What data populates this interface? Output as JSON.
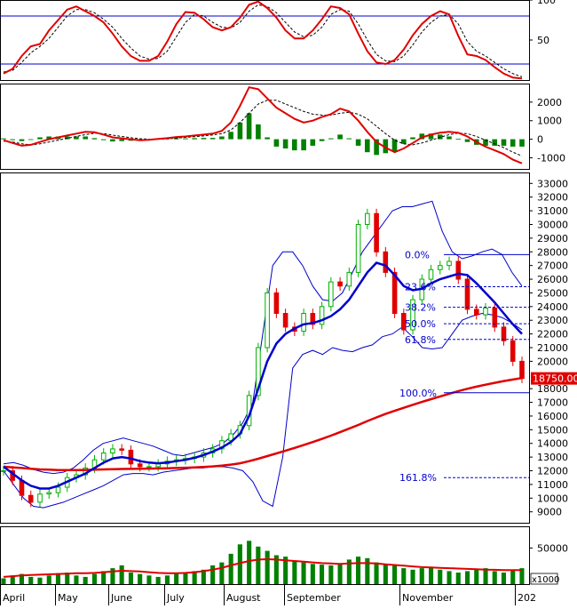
{
  "colors": {
    "background": "#ffffff",
    "frame": "#000000",
    "price_up": "#00b000",
    "price_down": "#e00000",
    "ma_slow": "#e00000",
    "ma_fast": "#0000cc",
    "bollinger": "#0000cc",
    "fib": "#0000cc",
    "stoch_k": "#e00000",
    "stoch_d": "#000000",
    "macd": "#e00000",
    "macd_signal": "#000000",
    "macd_hist": "#008000",
    "volume": "#008000",
    "volume_ma": "#e00000",
    "last_price_bg": "#e00000"
  },
  "chart_data": [
    {
      "type": "line",
      "panel": "stochastic",
      "y_ticks": [
        "100",
        "50"
      ],
      "ylim": [
        0,
        100
      ],
      "levels": [
        80,
        20
      ],
      "series": [
        {
          "role": "k",
          "values": [
            8,
            14,
            30,
            42,
            45,
            62,
            75,
            88,
            92,
            86,
            80,
            72,
            58,
            42,
            30,
            24,
            24,
            30,
            48,
            70,
            85,
            84,
            76,
            66,
            62,
            66,
            78,
            94,
            98,
            90,
            78,
            62,
            52,
            52,
            62,
            76,
            92,
            90,
            82,
            58,
            36,
            22,
            20,
            25,
            38,
            56,
            70,
            80,
            86,
            82,
            55,
            32,
            30,
            25,
            16,
            8,
            3,
            2
          ]
        },
        {
          "role": "d",
          "values": [
            10,
            12,
            22,
            34,
            42,
            52,
            66,
            80,
            88,
            88,
            84,
            76,
            66,
            52,
            40,
            30,
            26,
            27,
            36,
            54,
            72,
            82,
            80,
            72,
            66,
            65,
            72,
            86,
            94,
            92,
            84,
            72,
            60,
            54,
            56,
            66,
            82,
            88,
            86,
            70,
            50,
            32,
            24,
            23,
            30,
            44,
            60,
            72,
            80,
            82,
            70,
            48,
            36,
            30,
            22,
            14,
            8,
            4
          ]
        }
      ]
    },
    {
      "type": "line",
      "panel": "macd",
      "y_ticks": [
        "2000",
        "1000",
        "0",
        "-1000"
      ],
      "ylim": [
        -1600,
        3000
      ],
      "series": [
        {
          "role": "macd",
          "values": [
            -50,
            -200,
            -350,
            -300,
            -150,
            0,
            100,
            200,
            300,
            400,
            380,
            250,
            100,
            50,
            0,
            -50,
            -30,
            20,
            60,
            120,
            150,
            200,
            250,
            300,
            450,
            900,
            1800,
            2800,
            2700,
            2200,
            1700,
            1400,
            1100,
            900,
            1000,
            1200,
            1350,
            1650,
            1500,
            1000,
            400,
            -150,
            -450,
            -700,
            -500,
            -200,
            100,
            250,
            350,
            400,
            350,
            150,
            -150,
            -400,
            -600,
            -800,
            -1100,
            -1300
          ]
        },
        {
          "role": "signal",
          "values": [
            -100,
            -150,
            -250,
            -300,
            -250,
            -150,
            -50,
            50,
            150,
            250,
            320,
            300,
            220,
            150,
            80,
            30,
            0,
            0,
            20,
            60,
            100,
            140,
            180,
            230,
            300,
            500,
            900,
            1400,
            1900,
            2100,
            2100,
            1900,
            1700,
            1500,
            1350,
            1300,
            1300,
            1400,
            1450,
            1350,
            1100,
            700,
            300,
            -50,
            -250,
            -300,
            -200,
            -50,
            100,
            250,
            330,
            300,
            150,
            -50,
            -250,
            -450,
            -700,
            -900
          ]
        },
        {
          "role": "histogram",
          "values": [
            50,
            -50,
            -100,
            0,
            100,
            150,
            150,
            150,
            150,
            150,
            60,
            -50,
            -120,
            -100,
            -80,
            -80,
            -30,
            20,
            40,
            60,
            50,
            60,
            70,
            70,
            150,
            400,
            900,
            1400,
            800,
            100,
            -400,
            -500,
            -600,
            -600,
            -350,
            -100,
            50,
            250,
            50,
            -350,
            -700,
            -850,
            -750,
            -650,
            -250,
            100,
            300,
            300,
            250,
            150,
            20,
            -150,
            -300,
            -350,
            -350,
            -350,
            -400,
            -400
          ]
        }
      ]
    },
    {
      "type": "line",
      "panel": "price",
      "x_ticks": [
        "April",
        "May",
        "June",
        "July",
        "August",
        "September",
        "November",
        "202"
      ],
      "y_ticks": [
        "33000",
        "32000",
        "31000",
        "30000",
        "29000",
        "28000",
        "27000",
        "26000",
        "25000",
        "24000",
        "23000",
        "22000",
        "21000",
        "20000",
        "18000",
        "17000",
        "16000",
        "15000",
        "14000",
        "13000",
        "12000",
        "11000",
        "10000",
        "9000"
      ],
      "ylim": [
        8200,
        33800
      ],
      "last_price": "18750.00",
      "fibonacci": [
        {
          "label": "0.0%",
          "value": 27800
        },
        {
          "label": "23.6%",
          "value": 25450
        },
        {
          "label": "38.2%",
          "value": 23950
        },
        {
          "label": "50.0%",
          "value": 22750
        },
        {
          "label": "61.8%",
          "value": 21600
        },
        {
          "label": "100.0%",
          "value": 17700
        },
        {
          "label": "161.8%",
          "value": 11500
        }
      ],
      "close": [
        12000,
        11300,
        10200,
        9700,
        10300,
        10400,
        10800,
        11500,
        11700,
        12200,
        12800,
        13300,
        13600,
        13500,
        12500,
        12300,
        12300,
        12500,
        12700,
        12800,
        12900,
        13000,
        13300,
        13600,
        14200,
        14700,
        15300,
        17500,
        21000,
        25000,
        23500,
        22500,
        22200,
        23500,
        22700,
        24000,
        25800,
        25500,
        26500,
        30000,
        30800,
        28000,
        26500,
        23500,
        22300,
        24500,
        26000,
        26700,
        27000,
        27300,
        26000,
        23800,
        23400,
        23900,
        22500,
        21500,
        20000,
        18750
      ],
      "series": [
        {
          "role": "ma_slow",
          "values": [
            12300,
            12250,
            12200,
            12150,
            12100,
            12080,
            12050,
            12050,
            12050,
            12060,
            12080,
            12100,
            12120,
            12130,
            12140,
            12150,
            12160,
            12170,
            12180,
            12200,
            12220,
            12250,
            12280,
            12320,
            12380,
            12450,
            12550,
            12700,
            12880,
            13070,
            13270,
            13470,
            13670,
            13880,
            14100,
            14330,
            14570,
            14820,
            15080,
            15350,
            15630,
            15900,
            16150,
            16380,
            16600,
            16820,
            17030,
            17230,
            17430,
            17630,
            17820,
            17990,
            18150,
            18290,
            18430,
            18560,
            18670,
            18780
          ]
        },
        {
          "role": "ma_fast",
          "values": [
            12300,
            11800,
            11300,
            10900,
            10700,
            10700,
            10900,
            11200,
            11500,
            11800,
            12200,
            12600,
            12900,
            13000,
            12900,
            12700,
            12600,
            12550,
            12600,
            12700,
            12800,
            12950,
            13150,
            13400,
            13700,
            14100,
            14700,
            16000,
            18000,
            20000,
            21300,
            22000,
            22400,
            22700,
            22800,
            23000,
            23300,
            23800,
            24500,
            25500,
            26500,
            27200,
            27000,
            26300,
            25500,
            25200,
            25300,
            25700,
            26000,
            26200,
            26400,
            26300,
            25700,
            25000,
            24300,
            23500,
            22700,
            22000
          ]
        },
        {
          "role": "bb_upper",
          "values": [
            12500,
            12600,
            12400,
            12100,
            11900,
            11800,
            11900,
            12200,
            12800,
            13500,
            14000,
            14200,
            14400,
            14200,
            14000,
            13800,
            13500,
            13200,
            13100,
            13300,
            13500,
            13700,
            14000,
            14600,
            15500,
            17000,
            22000,
            27000,
            28000,
            28000,
            27000,
            25500,
            24500,
            24400,
            25000,
            26500,
            28000,
            29000,
            30000,
            31000,
            31300,
            31300,
            31500,
            31700,
            29500,
            28000,
            27500,
            27700,
            28000,
            28200,
            27800,
            26500,
            25500
          ]
        },
        {
          "role": "bb_lower",
          "values": [
            12000,
            11000,
            10000,
            9400,
            9300,
            9500,
            9700,
            10000,
            10300,
            10600,
            10900,
            11300,
            11700,
            11800,
            11800,
            11700,
            11900,
            12000,
            12100,
            12200,
            12200,
            12300,
            12300,
            12200,
            12000,
            11200,
            9800,
            9400,
            13000,
            19500,
            20500,
            20800,
            20500,
            21000,
            20800,
            20700,
            21000,
            21200,
            21800,
            22000,
            22500,
            21800,
            21000,
            20900,
            21000,
            22000,
            23000,
            23300,
            23500,
            23400,
            23200,
            22800,
            22300
          ]
        }
      ]
    },
    {
      "type": "bar",
      "panel": "volume",
      "y_ticks": [
        "50000"
      ],
      "ylim": [
        0,
        80000
      ],
      "unit": "x1000",
      "values": [
        8000,
        12000,
        14000,
        10000,
        9000,
        12000,
        15000,
        16000,
        12000,
        10000,
        14000,
        18000,
        22000,
        26000,
        16000,
        14000,
        12000,
        10000,
        12000,
        14000,
        16000,
        18000,
        20000,
        26000,
        30000,
        42000,
        55000,
        60000,
        52000,
        46000,
        40000,
        38000,
        32000,
        30000,
        28000,
        27000,
        26000,
        28000,
        34000,
        38000,
        36000,
        30000,
        28000,
        26000,
        22000,
        20000,
        22000,
        24000,
        20000,
        18000,
        16000,
        18000,
        20000,
        22000,
        18000,
        16000,
        20000,
        22000
      ],
      "series": [
        {
          "role": "volume_ma",
          "values": [
            10000,
            11000,
            12000,
            12500,
            13000,
            13500,
            14000,
            14500,
            15000,
            15000,
            15500,
            16500,
            17500,
            18500,
            18000,
            17500,
            16500,
            15500,
            15000,
            15000,
            15500,
            16500,
            18000,
            20000,
            22500,
            26000,
            29000,
            32000,
            34000,
            34500,
            34000,
            33000,
            32000,
            31000,
            30000,
            29000,
            28500,
            28000,
            28500,
            29000,
            29000,
            28500,
            27500,
            26500,
            25500,
            24500,
            23500,
            23000,
            22500,
            22000,
            21500,
            21000,
            20500,
            20000,
            19800,
            19500,
            19500,
            19500
          ]
        }
      ]
    }
  ]
}
